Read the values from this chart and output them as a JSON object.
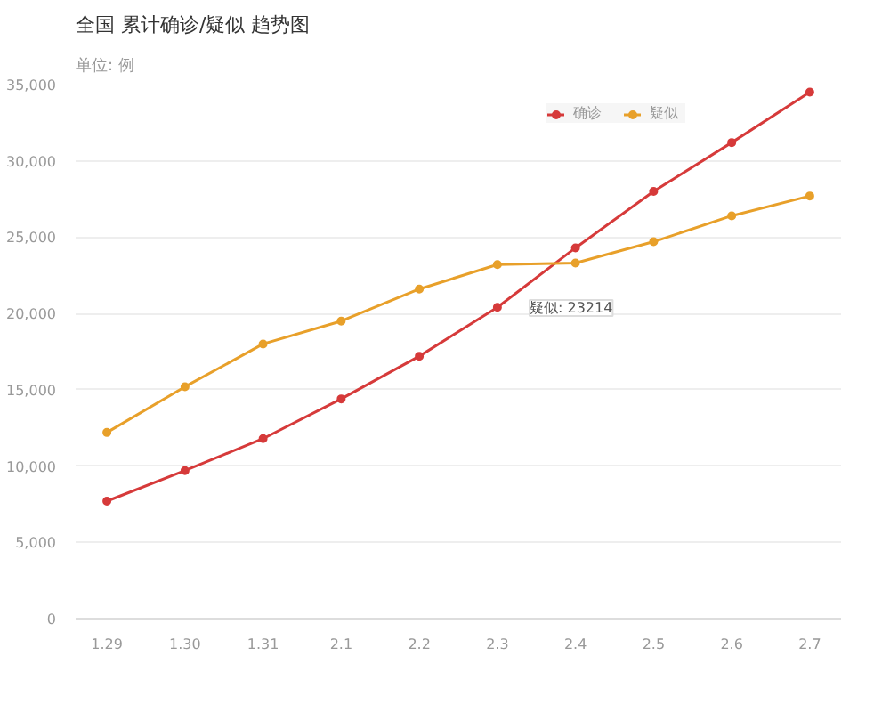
{
  "chart_data": {
    "type": "line",
    "title": "全国 累计确诊/疑似 趋势图",
    "subtitle": "单位: 例",
    "categories": [
      "1.29",
      "1.30",
      "1.31",
      "2.1",
      "2.2",
      "2.3",
      "2.4",
      "2.5",
      "2.6",
      "2.7"
    ],
    "series": [
      {
        "name": "确诊",
        "color": "#d63a3a",
        "values": [
          7700,
          9700,
          11800,
          14400,
          17200,
          20400,
          24300,
          28000,
          31200,
          34500
        ]
      },
      {
        "name": "疑似",
        "color": "#e8a02a",
        "values": [
          12200,
          15200,
          18000,
          19500,
          21600,
          23200,
          23300,
          24700,
          26400,
          27700
        ]
      }
    ],
    "ylim": [
      0,
      35000
    ],
    "yticks": [
      0,
      {
        "value": 5000,
        "label": "5,000"
      },
      {
        "value": 10000,
        "label": "10,000"
      },
      {
        "value": 15000,
        "label": "15,000"
      },
      {
        "value": 20000,
        "label": "20,000"
      },
      {
        "value": 25000,
        "label": "25,000"
      },
      {
        "value": 30000,
        "label": "30,000"
      },
      {
        "value": 35000,
        "label": "35,000"
      }
    ],
    "annotations": [
      "疑似: 23214"
    ],
    "grid": "y",
    "legend": "top right",
    "marker": "circle",
    "line_style": "solid"
  }
}
